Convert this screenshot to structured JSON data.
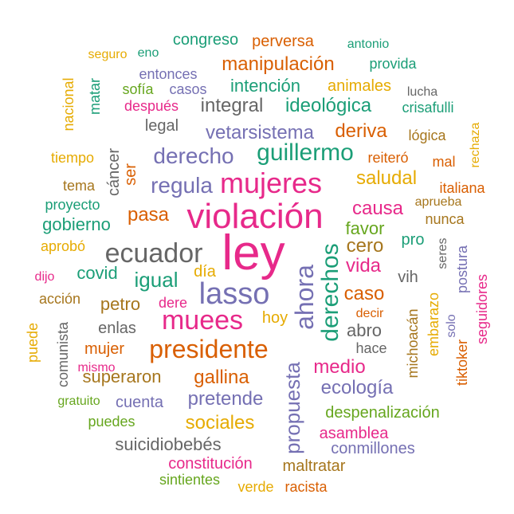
{
  "colors": {
    "teal": "#1b9e77",
    "orange": "#d95f02",
    "purple": "#7570b3",
    "pink": "#e7298a",
    "green": "#66a61e",
    "gold": "#e6ab02",
    "brown": "#a6761d",
    "gray": "#666666"
  },
  "words": [
    {
      "text": "ley",
      "color": "pink"
    },
    {
      "text": "violación",
      "color": "pink"
    },
    {
      "text": "mujeres",
      "color": "pink"
    },
    {
      "text": "lasso",
      "color": "purple"
    },
    {
      "text": "presidente",
      "color": "orange"
    },
    {
      "text": "muees",
      "color": "pink"
    },
    {
      "text": "ecuador",
      "color": "gray"
    },
    {
      "text": "guillermo",
      "color": "teal"
    },
    {
      "text": "derecho",
      "color": "purple"
    },
    {
      "text": "ahora",
      "color": "purple"
    },
    {
      "text": "derechos",
      "color": "teal"
    },
    {
      "text": "regula",
      "color": "purple"
    },
    {
      "text": "propuesta",
      "color": "purple"
    },
    {
      "text": "manipulación",
      "color": "orange"
    },
    {
      "text": "integral",
      "color": "gray"
    },
    {
      "text": "ideológica",
      "color": "teal"
    },
    {
      "text": "intención",
      "color": "teal"
    },
    {
      "text": "vetarsistema",
      "color": "purple"
    },
    {
      "text": "deriva",
      "color": "orange"
    },
    {
      "text": "saludal",
      "color": "gold"
    },
    {
      "text": "causa",
      "color": "pink"
    },
    {
      "text": "pasa",
      "color": "orange"
    },
    {
      "text": "igual",
      "color": "teal"
    },
    {
      "text": "vida",
      "color": "pink"
    },
    {
      "text": "cero",
      "color": "brown"
    },
    {
      "text": "caso",
      "color": "orange"
    },
    {
      "text": "medio",
      "color": "pink"
    },
    {
      "text": "ecología",
      "color": "purple"
    },
    {
      "text": "gallina",
      "color": "orange"
    },
    {
      "text": "pretende",
      "color": "purple"
    },
    {
      "text": "sociales",
      "color": "gold"
    },
    {
      "text": "suicidiobebés",
      "color": "gray"
    },
    {
      "text": "superaron",
      "color": "brown"
    },
    {
      "text": "mujer",
      "color": "orange"
    },
    {
      "text": "enlas",
      "color": "gray"
    },
    {
      "text": "petro",
      "color": "brown"
    },
    {
      "text": "covid",
      "color": "teal"
    },
    {
      "text": "día",
      "color": "gold"
    },
    {
      "text": "dere",
      "color": "pink"
    },
    {
      "text": "hoy",
      "color": "gold"
    },
    {
      "text": "abro",
      "color": "gray"
    },
    {
      "text": "hace",
      "color": "gray"
    },
    {
      "text": "vih",
      "color": "gray"
    },
    {
      "text": "pro",
      "color": "teal"
    },
    {
      "text": "favor",
      "color": "green"
    },
    {
      "text": "cuenta",
      "color": "purple"
    },
    {
      "text": "despenalización",
      "color": "green"
    },
    {
      "text": "asamblea",
      "color": "pink"
    },
    {
      "text": "conmillones",
      "color": "purple"
    },
    {
      "text": "constitución",
      "color": "pink"
    },
    {
      "text": "maltratar",
      "color": "brown"
    },
    {
      "text": "sintientes",
      "color": "green"
    },
    {
      "text": "verde",
      "color": "gold"
    },
    {
      "text": "racista",
      "color": "orange"
    },
    {
      "text": "puedes",
      "color": "green"
    },
    {
      "text": "gratuito",
      "color": "green"
    },
    {
      "text": "mismo",
      "color": "pink"
    },
    {
      "text": "comunista",
      "color": "gray"
    },
    {
      "text": "puede",
      "color": "gold"
    },
    {
      "text": "acción",
      "color": "brown"
    },
    {
      "text": "dijo",
      "color": "pink"
    },
    {
      "text": "aprobó",
      "color": "gold"
    },
    {
      "text": "gobierno",
      "color": "teal"
    },
    {
      "text": "proyecto",
      "color": "teal"
    },
    {
      "text": "tema",
      "color": "brown"
    },
    {
      "text": "cáncer",
      "color": "gray"
    },
    {
      "text": "ser",
      "color": "orange"
    },
    {
      "text": "tiempo",
      "color": "gold"
    },
    {
      "text": "legal",
      "color": "gray"
    },
    {
      "text": "después",
      "color": "pink"
    },
    {
      "text": "sofía",
      "color": "green"
    },
    {
      "text": "casos",
      "color": "purple"
    },
    {
      "text": "entonces",
      "color": "purple"
    },
    {
      "text": "matar",
      "color": "teal"
    },
    {
      "text": "nacional",
      "color": "gold"
    },
    {
      "text": "seguro",
      "color": "gold"
    },
    {
      "text": "eno",
      "color": "teal"
    },
    {
      "text": "congreso",
      "color": "teal"
    },
    {
      "text": "perversa",
      "color": "orange"
    },
    {
      "text": "antonio",
      "color": "teal"
    },
    {
      "text": "provida",
      "color": "teal"
    },
    {
      "text": "animales",
      "color": "gold"
    },
    {
      "text": "lucha",
      "color": "gray"
    },
    {
      "text": "crisafulli",
      "color": "teal"
    },
    {
      "text": "lógica",
      "color": "brown"
    },
    {
      "text": "rechaza",
      "color": "gold"
    },
    {
      "text": "mal",
      "color": "orange"
    },
    {
      "text": "reiteró",
      "color": "orange"
    },
    {
      "text": "italiana",
      "color": "orange"
    },
    {
      "text": "aprueba",
      "color": "brown"
    },
    {
      "text": "nunca",
      "color": "brown"
    },
    {
      "text": "seres",
      "color": "gray"
    },
    {
      "text": "postura",
      "color": "purple"
    },
    {
      "text": "seguidores",
      "color": "pink"
    },
    {
      "text": "embarazo",
      "color": "gold"
    },
    {
      "text": "solo",
      "color": "purple"
    },
    {
      "text": "michoacán",
      "color": "brown"
    },
    {
      "text": "decir",
      "color": "orange"
    },
    {
      "text": "tiktoker",
      "color": "orange"
    }
  ]
}
